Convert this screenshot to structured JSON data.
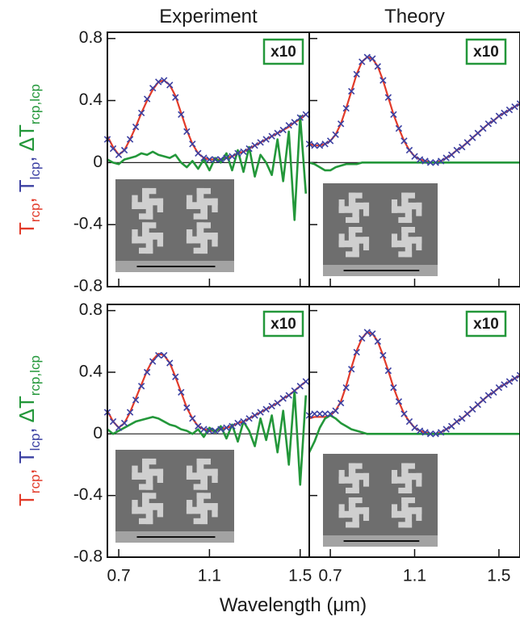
{
  "figure": {
    "x_label": "Wavelength (μm)",
    "y_label": [
      {
        "text": "T",
        "sub": "rcp",
        "tail": ",",
        "color": "#e23b2a"
      },
      {
        "text": "T",
        "sub": "lcp",
        "tail": ",",
        "color": "#3b40a2"
      },
      {
        "text": "ΔT",
        "sub": "rcp,lcp",
        "color": "#23973a"
      }
    ]
  },
  "chart_data": [
    {
      "type": "line",
      "title": "Experiment",
      "annotation": "x10",
      "x": [
        0.65,
        0.675,
        0.7,
        0.725,
        0.75,
        0.775,
        0.8,
        0.825,
        0.85,
        0.875,
        0.9,
        0.925,
        0.95,
        0.975,
        1.0,
        1.025,
        1.05,
        1.075,
        1.1,
        1.125,
        1.15,
        1.175,
        1.2,
        1.225,
        1.25,
        1.275,
        1.3,
        1.325,
        1.35,
        1.375,
        1.4,
        1.425,
        1.45,
        1.475,
        1.5,
        1.525
      ],
      "series": [
        {
          "color": "#e23b2a",
          "values": [
            0.17,
            0.1,
            0.05,
            0.08,
            0.15,
            0.23,
            0.32,
            0.4,
            0.47,
            0.52,
            0.53,
            0.5,
            0.43,
            0.32,
            0.21,
            0.12,
            0.06,
            0.03,
            0.02,
            0.02,
            0.02,
            0.03,
            0.04,
            0.06,
            0.07,
            0.09,
            0.11,
            0.13,
            0.15,
            0.17,
            0.19,
            0.21,
            0.23,
            0.26,
            0.28,
            0.31
          ]
        },
        {
          "color": "#3b40a2",
          "marker": "x",
          "values": [
            0.15,
            0.09,
            0.05,
            0.08,
            0.15,
            0.23,
            0.32,
            0.41,
            0.48,
            0.52,
            0.53,
            0.5,
            0.42,
            0.31,
            0.2,
            0.12,
            0.06,
            0.03,
            0.02,
            0.02,
            0.02,
            0.03,
            0.04,
            0.06,
            0.07,
            0.09,
            0.11,
            0.13,
            0.15,
            0.17,
            0.19,
            0.21,
            0.24,
            0.26,
            0.29,
            0.31
          ]
        },
        {
          "color": "#23973a",
          "values": [
            0.02,
            0.0,
            -0.01,
            0.02,
            0.03,
            0.04,
            0.06,
            0.05,
            0.07,
            0.05,
            0.04,
            0.03,
            0.05,
            0.0,
            -0.03,
            0.01,
            -0.04,
            0.02,
            -0.05,
            0.03,
            0.0,
            0.06,
            -0.05,
            0.08,
            -0.06,
            0.1,
            -0.09,
            0.05,
            0.0,
            -0.08,
            0.15,
            -0.12,
            0.2,
            -0.37,
            0.3,
            -0.2
          ]
        }
      ],
      "xlim": [
        0.65,
        1.54
      ],
      "xticks": [
        0.7,
        1.1,
        1.5
      ],
      "ylim": [
        -0.8,
        0.84
      ],
      "yticks": [
        0.8,
        0.4,
        0,
        -0.4,
        -0.8
      ]
    },
    {
      "type": "line",
      "title": "Theory",
      "annotation": "x10",
      "x": [
        0.6,
        0.625,
        0.65,
        0.675,
        0.7,
        0.725,
        0.75,
        0.775,
        0.8,
        0.825,
        0.85,
        0.875,
        0.9,
        0.925,
        0.95,
        0.975,
        1.0,
        1.025,
        1.05,
        1.075,
        1.1,
        1.125,
        1.15,
        1.175,
        1.2,
        1.225,
        1.25,
        1.275,
        1.3,
        1.325,
        1.35,
        1.375,
        1.4,
        1.425,
        1.45,
        1.475,
        1.5,
        1.525,
        1.55,
        1.575,
        1.6
      ],
      "series": [
        {
          "color": "#e23b2a",
          "values": [
            0.12,
            0.11,
            0.11,
            0.12,
            0.14,
            0.18,
            0.25,
            0.35,
            0.46,
            0.57,
            0.65,
            0.68,
            0.67,
            0.62,
            0.53,
            0.42,
            0.31,
            0.22,
            0.14,
            0.08,
            0.04,
            0.02,
            0.01,
            0.0,
            0.0,
            0.01,
            0.03,
            0.05,
            0.08,
            0.1,
            0.13,
            0.16,
            0.19,
            0.22,
            0.25,
            0.27,
            0.3,
            0.32,
            0.34,
            0.36,
            0.38
          ]
        },
        {
          "color": "#3b40a2",
          "marker": "x",
          "values": [
            0.12,
            0.11,
            0.11,
            0.12,
            0.14,
            0.18,
            0.25,
            0.35,
            0.46,
            0.57,
            0.65,
            0.68,
            0.67,
            0.62,
            0.53,
            0.42,
            0.31,
            0.22,
            0.14,
            0.08,
            0.04,
            0.02,
            0.01,
            0.0,
            0.0,
            0.01,
            0.03,
            0.05,
            0.08,
            0.1,
            0.13,
            0.16,
            0.19,
            0.22,
            0.25,
            0.27,
            0.3,
            0.32,
            0.34,
            0.36,
            0.38
          ]
        },
        {
          "color": "#23973a",
          "values": [
            0.0,
            -0.01,
            -0.03,
            -0.05,
            -0.05,
            -0.03,
            -0.02,
            -0.01,
            -0.01,
            -0.01,
            0.0,
            0.0,
            0.0,
            0.0,
            0.0,
            0.0,
            0.0,
            0.0,
            0.0,
            0.0,
            0.0,
            0.0,
            0.0,
            0.0,
            0.0,
            0.0,
            0.0,
            0.0,
            0.0,
            0.0,
            0.0,
            0.0,
            0.0,
            0.0,
            0.0,
            0.0,
            0.0,
            0.0,
            0.0,
            0.0,
            0.0
          ]
        }
      ],
      "xlim": [
        0.6,
        1.6
      ],
      "xticks": [
        0.7,
        1.1,
        1.5
      ],
      "ylim": [
        -0.8,
        0.84
      ],
      "yticks": [
        0.8,
        0.4,
        0,
        -0.4,
        -0.8
      ]
    },
    {
      "type": "line",
      "annotation": "x10",
      "x": [
        0.65,
        0.675,
        0.7,
        0.725,
        0.75,
        0.775,
        0.8,
        0.825,
        0.85,
        0.875,
        0.9,
        0.925,
        0.95,
        0.975,
        1.0,
        1.025,
        1.05,
        1.075,
        1.1,
        1.125,
        1.15,
        1.175,
        1.2,
        1.225,
        1.25,
        1.275,
        1.3,
        1.325,
        1.35,
        1.375,
        1.4,
        1.425,
        1.45,
        1.475,
        1.5,
        1.525
      ],
      "series": [
        {
          "color": "#e23b2a",
          "values": [
            0.15,
            0.08,
            0.04,
            0.07,
            0.14,
            0.23,
            0.32,
            0.41,
            0.48,
            0.52,
            0.51,
            0.46,
            0.37,
            0.27,
            0.17,
            0.1,
            0.05,
            0.03,
            0.02,
            0.02,
            0.03,
            0.04,
            0.05,
            0.07,
            0.08,
            0.1,
            0.12,
            0.14,
            0.16,
            0.18,
            0.2,
            0.23,
            0.25,
            0.28,
            0.31,
            0.34
          ]
        },
        {
          "color": "#3b40a2",
          "marker": "x",
          "values": [
            0.14,
            0.08,
            0.04,
            0.07,
            0.14,
            0.22,
            0.31,
            0.4,
            0.47,
            0.51,
            0.51,
            0.46,
            0.37,
            0.27,
            0.17,
            0.1,
            0.05,
            0.03,
            0.02,
            0.02,
            0.03,
            0.04,
            0.05,
            0.07,
            0.08,
            0.1,
            0.12,
            0.14,
            0.16,
            0.18,
            0.2,
            0.23,
            0.25,
            0.28,
            0.31,
            0.34
          ]
        },
        {
          "color": "#23973a",
          "values": [
            0.03,
            0.0,
            0.02,
            0.04,
            0.06,
            0.08,
            0.09,
            0.1,
            0.11,
            0.1,
            0.08,
            0.06,
            0.05,
            0.03,
            0.02,
            0.0,
            0.03,
            -0.02,
            0.04,
            0.01,
            0.05,
            -0.03,
            0.06,
            -0.05,
            0.08,
            0.02,
            -0.08,
            0.1,
            -0.04,
            0.12,
            -0.12,
            0.15,
            -0.2,
            0.28,
            -0.33,
            0.25
          ]
        }
      ],
      "xlim": [
        0.65,
        1.54
      ],
      "xticks": [
        0.7,
        1.1,
        1.5
      ],
      "ylim": [
        -0.8,
        0.84
      ],
      "yticks": [
        0.8,
        0.4,
        0,
        -0.4,
        -0.8
      ]
    },
    {
      "type": "line",
      "annotation": "x10",
      "x": [
        0.6,
        0.625,
        0.65,
        0.675,
        0.7,
        0.725,
        0.75,
        0.775,
        0.8,
        0.825,
        0.85,
        0.875,
        0.9,
        0.925,
        0.95,
        0.975,
        1.0,
        1.025,
        1.05,
        1.075,
        1.1,
        1.125,
        1.15,
        1.175,
        1.2,
        1.225,
        1.25,
        1.275,
        1.3,
        1.325,
        1.35,
        1.375,
        1.4,
        1.425,
        1.45,
        1.475,
        1.5,
        1.525,
        1.55,
        1.575,
        1.6
      ],
      "series": [
        {
          "color": "#e23b2a",
          "values": [
            0.1,
            0.11,
            0.11,
            0.11,
            0.12,
            0.15,
            0.21,
            0.31,
            0.43,
            0.54,
            0.62,
            0.66,
            0.65,
            0.6,
            0.51,
            0.41,
            0.3,
            0.21,
            0.13,
            0.08,
            0.04,
            0.02,
            0.01,
            0.0,
            0.0,
            0.01,
            0.03,
            0.05,
            0.08,
            0.1,
            0.13,
            0.16,
            0.19,
            0.22,
            0.25,
            0.27,
            0.3,
            0.32,
            0.34,
            0.36,
            0.38
          ]
        },
        {
          "color": "#3b40a2",
          "marker": "x",
          "values": [
            0.12,
            0.13,
            0.13,
            0.13,
            0.13,
            0.15,
            0.2,
            0.3,
            0.42,
            0.53,
            0.62,
            0.66,
            0.65,
            0.6,
            0.51,
            0.41,
            0.3,
            0.21,
            0.13,
            0.08,
            0.04,
            0.02,
            0.01,
            0.0,
            0.0,
            0.01,
            0.03,
            0.05,
            0.08,
            0.1,
            0.13,
            0.16,
            0.19,
            0.22,
            0.25,
            0.27,
            0.3,
            0.32,
            0.34,
            0.36,
            0.38
          ]
        },
        {
          "color": "#23973a",
          "values": [
            -0.12,
            -0.05,
            0.04,
            0.1,
            0.12,
            0.1,
            0.07,
            0.05,
            0.03,
            0.02,
            0.01,
            0.0,
            0.0,
            0.0,
            0.0,
            0.0,
            0.0,
            0.0,
            0.0,
            0.0,
            0.0,
            0.0,
            0.0,
            0.0,
            0.0,
            0.0,
            0.0,
            0.0,
            0.0,
            0.0,
            0.0,
            0.0,
            0.0,
            0.0,
            0.0,
            0.0,
            0.0,
            0.0,
            0.0,
            0.0,
            0.0
          ]
        }
      ],
      "xlim": [
        0.6,
        1.6
      ],
      "xticks": [
        0.7,
        1.1,
        1.5
      ],
      "ylim": [
        -0.8,
        0.84
      ],
      "yticks": [
        0.8,
        0.4,
        0,
        -0.4,
        -0.8
      ]
    }
  ]
}
